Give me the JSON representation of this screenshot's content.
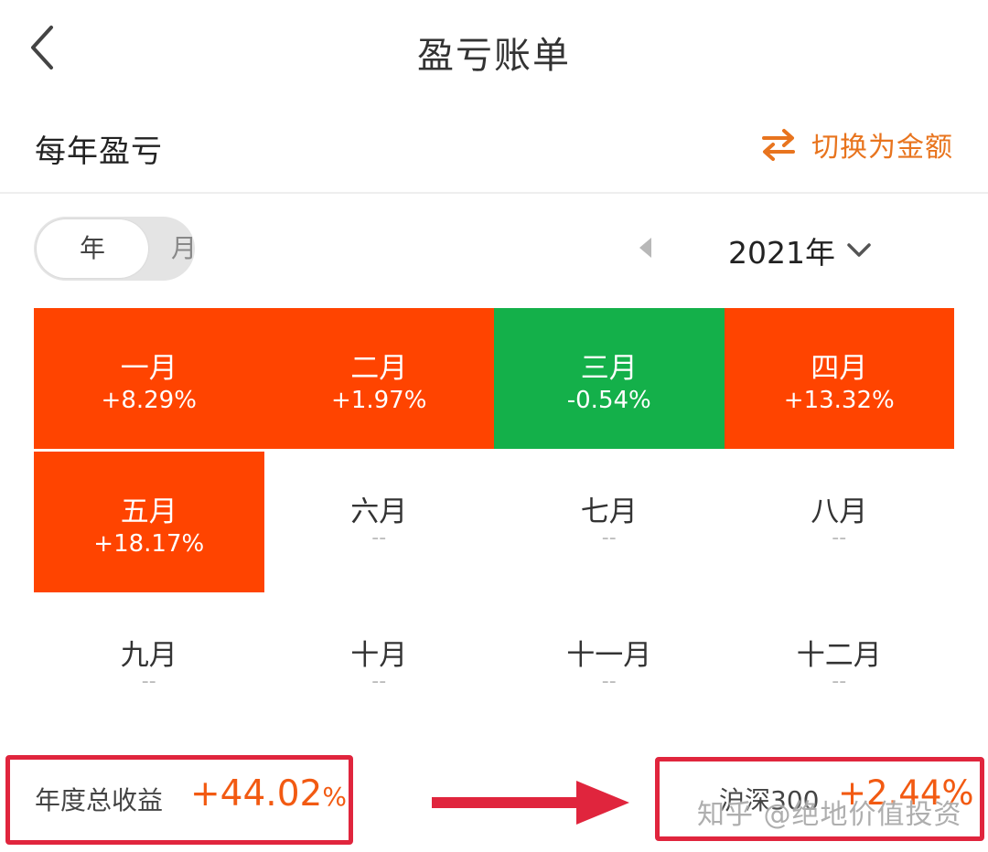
{
  "header": {
    "title": "盈亏账单",
    "back_icon": "chevron-left-icon"
  },
  "section": {
    "title": "每年盈亏",
    "switch_label": "切换为金额",
    "switch_icon": "swap-arrows-icon"
  },
  "toggle": {
    "year": "年",
    "month": "月",
    "selected": "年"
  },
  "year_picker": {
    "label": "2021年"
  },
  "colors": {
    "gain": "#ff4400",
    "loss": "#14b04a",
    "accent": "#e8741e",
    "annotation": "#e0253d"
  },
  "months": [
    {
      "name": "一月",
      "value": "+8.29%",
      "status": "up"
    },
    {
      "name": "二月",
      "value": "+1.97%",
      "status": "up"
    },
    {
      "name": "三月",
      "value": "-0.54%",
      "status": "down"
    },
    {
      "name": "四月",
      "value": "+13.32%",
      "status": "up"
    },
    {
      "name": "五月",
      "value": "+18.17%",
      "status": "up"
    },
    {
      "name": "六月",
      "value": "--",
      "status": "empty"
    },
    {
      "name": "七月",
      "value": "--",
      "status": "empty"
    },
    {
      "name": "八月",
      "value": "--",
      "status": "empty"
    },
    {
      "name": "九月",
      "value": "--",
      "status": "empty"
    },
    {
      "name": "十月",
      "value": "--",
      "status": "empty"
    },
    {
      "name": "十一月",
      "value": "--",
      "status": "empty"
    },
    {
      "name": "十二月",
      "value": "--",
      "status": "empty"
    }
  ],
  "summary": {
    "label": "年度总收益",
    "value": "+44.02",
    "unit": "%"
  },
  "benchmark": {
    "label": "沪深300",
    "value": "+2.44%"
  },
  "watermark": "知乎 @绝地价值投资"
}
